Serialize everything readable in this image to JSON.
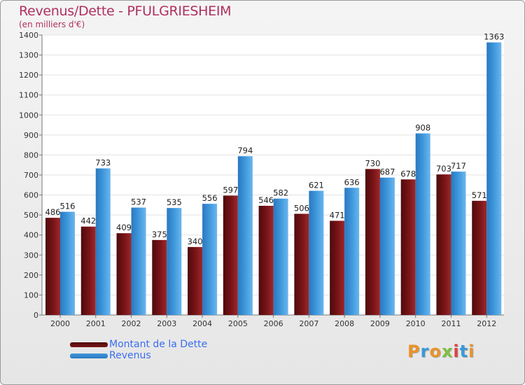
{
  "colors": {
    "dette": "#7a1418",
    "revenus": "#3f98dc",
    "title": "#b03060",
    "legend_text": "#3a6df0"
  },
  "logo": {
    "text": "Proxiti"
  },
  "chart_data": {
    "type": "bar",
    "title": "Revenus/Dette - PFULGRIESHEIM",
    "subtitle": "(en milliers d'€)",
    "categories": [
      "2000",
      "2001",
      "2002",
      "2003",
      "2004",
      "2005",
      "2006",
      "2007",
      "2008",
      "2009",
      "2010",
      "2011",
      "2012"
    ],
    "series": [
      {
        "name": "Montant de la Dette",
        "values": [
          486,
          442,
          409,
          375,
          340,
          597,
          546,
          506,
          471,
          730,
          678,
          703,
          571
        ]
      },
      {
        "name": "Revenus",
        "values": [
          516,
          733,
          537,
          535,
          556,
          794,
          582,
          621,
          636,
          687,
          908,
          717,
          1363
        ]
      }
    ],
    "ylim": [
      0,
      1400
    ],
    "yticks": [
      0,
      100,
      200,
      300,
      400,
      500,
      600,
      700,
      800,
      900,
      1000,
      1100,
      1200,
      1300,
      1400
    ],
    "grid": true,
    "legend": "bottom-left"
  }
}
